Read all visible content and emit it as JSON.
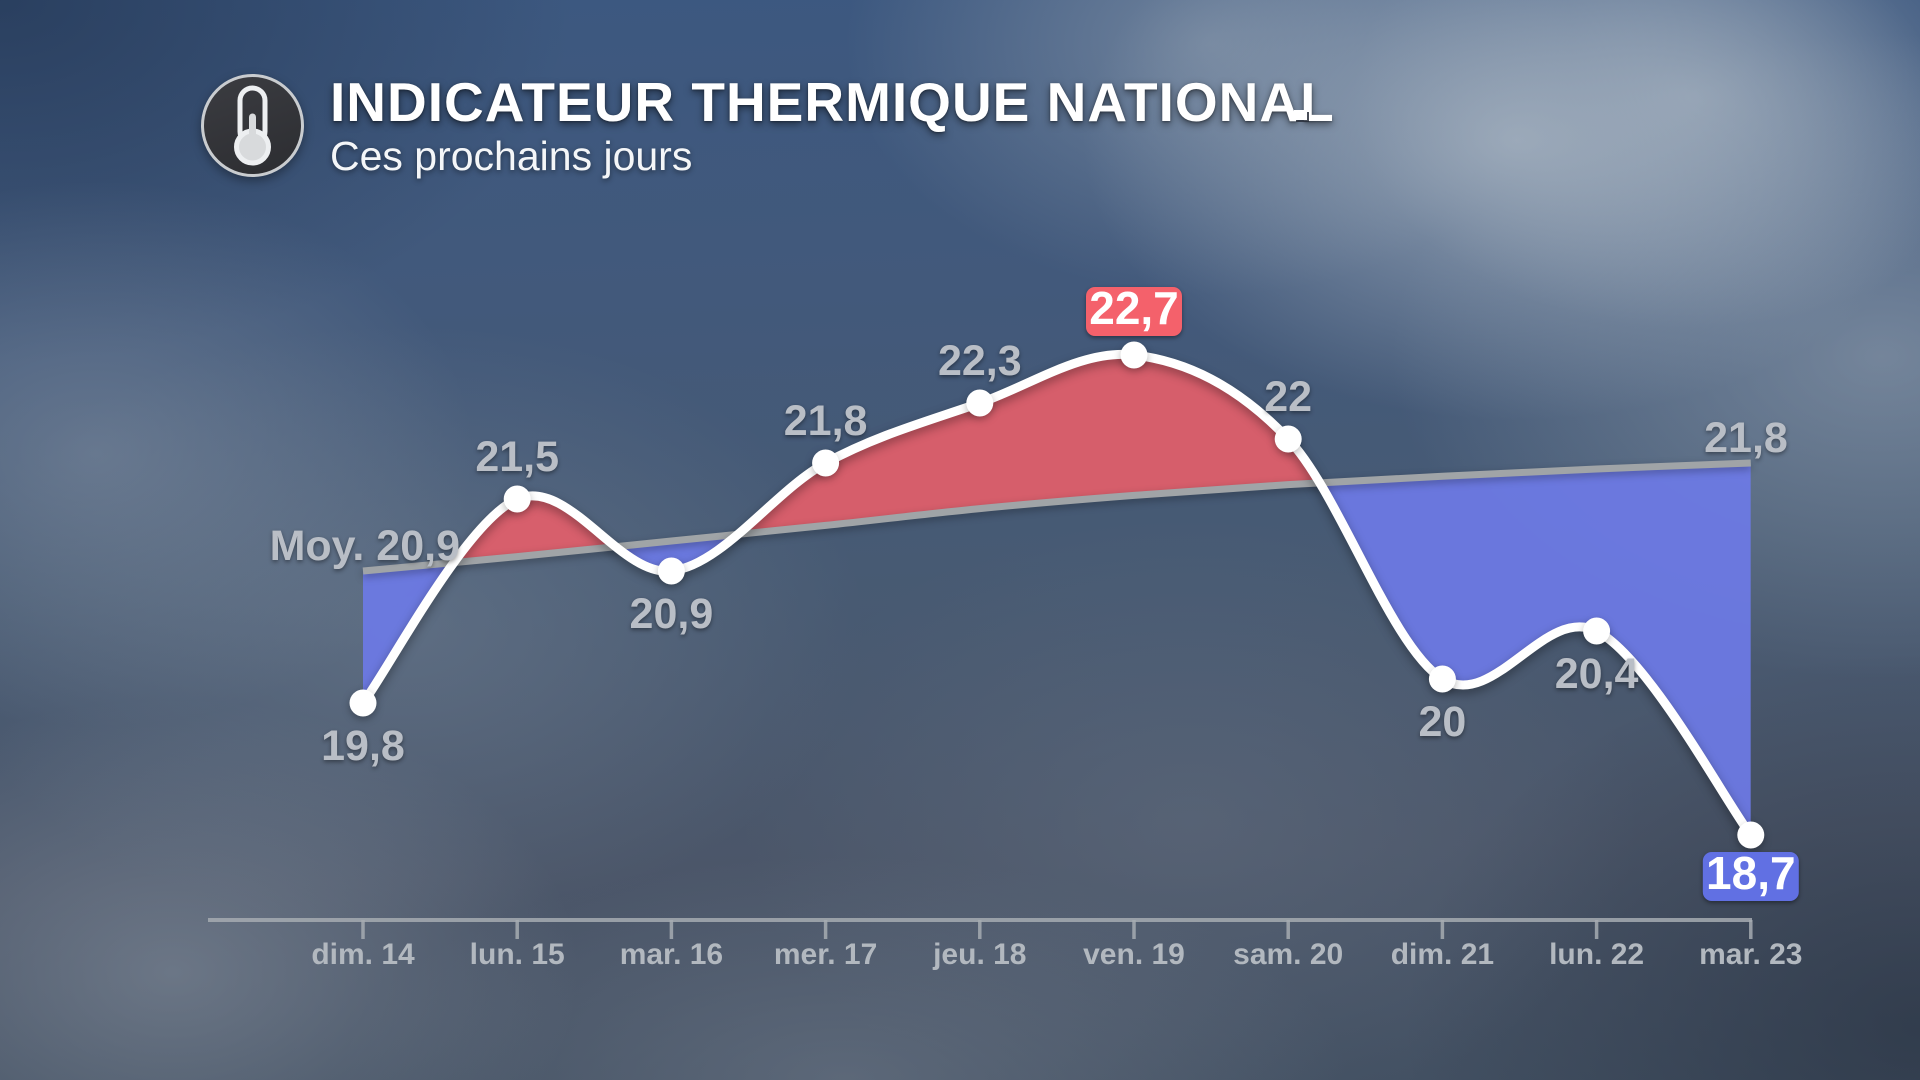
{
  "header": {
    "icon": "thermometer-icon",
    "title": "INDICATEUR THERMIQUE NATIONAL",
    "subtitle": "Ces prochains jours"
  },
  "chart_data": {
    "type": "line",
    "title": "INDICATEUR THERMIQUE NATIONAL",
    "subtitle": "Ces prochains jours",
    "categories": [
      "dim. 14",
      "lun. 15",
      "mar. 16",
      "mer. 17",
      "jeu. 18",
      "ven. 19",
      "sam. 20",
      "dim. 21",
      "lun. 22",
      "mar. 23"
    ],
    "series": [
      {
        "name": "temperature-indicator",
        "values": [
          19.8,
          21.5,
          20.9,
          21.8,
          22.3,
          22.7,
          22,
          20,
          20.4,
          18.7
        ],
        "point_labels": [
          "19,8",
          "21,5",
          "20,9",
          "21,8",
          "22,3",
          "22,7",
          "22",
          "20",
          "20,4",
          "18,7"
        ],
        "label_placement": [
          "below",
          "above",
          "below",
          "above",
          "above",
          "above",
          "above",
          "below",
          "below",
          "below"
        ],
        "badges": [
          "none",
          "none",
          "none",
          "none",
          "none",
          "red",
          "none",
          "none",
          "none",
          "blue"
        ]
      },
      {
        "name": "average",
        "values": [
          20.9,
          21.02,
          21.15,
          21.28,
          21.42,
          21.53,
          21.62,
          21.69,
          21.75,
          21.8
        ],
        "start_label": "Moy. 20,9",
        "end_label": "21,8"
      }
    ],
    "ylim": [
      18,
      23.3
    ],
    "grid": "off",
    "legend": "none",
    "colors": {
      "above_average_fill": "#e15f6b",
      "below_average_fill": "#6d7ae5",
      "line": "#ffffff",
      "average_line": "#a0a4a7",
      "point_label": "#b9bec6",
      "max_badge": "#f4616b",
      "min_badge": "#6170e3",
      "badge_text": "#ffffff",
      "axis": "#a6acb2",
      "tick_label": "#b2b8bf"
    }
  }
}
